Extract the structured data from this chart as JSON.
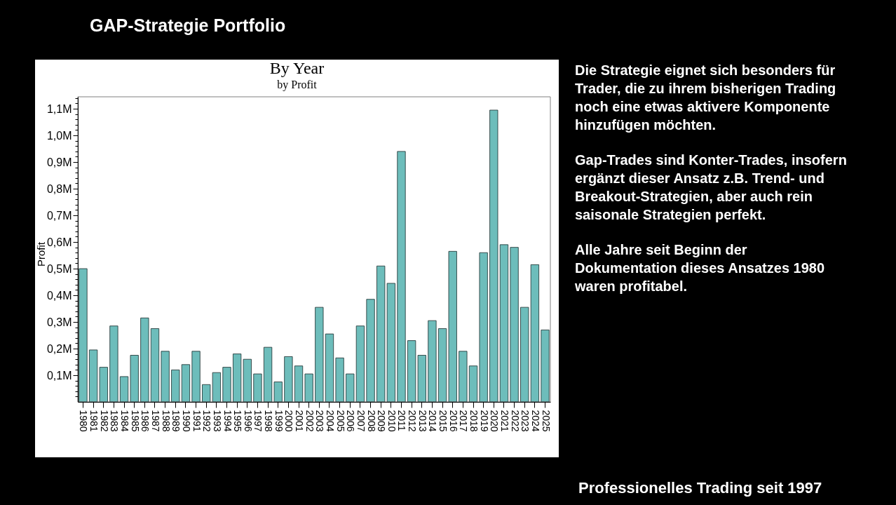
{
  "chart_data": {
    "type": "bar",
    "title": "By Year",
    "subtitle": "by Profit",
    "ylabel": "Profit",
    "categories": [
      "1980",
      "1981",
      "1982",
      "1983",
      "1984",
      "1985",
      "1986",
      "1987",
      "1988",
      "1989",
      "1990",
      "1991",
      "1992",
      "1993",
      "1994",
      "1995",
      "1996",
      "1997",
      "1998",
      "1999",
      "2000",
      "2001",
      "2002",
      "2003",
      "2004",
      "2005",
      "2006",
      "2007",
      "2008",
      "2009",
      "2010",
      "2011",
      "2012",
      "2013",
      "2014",
      "2015",
      "2016",
      "2017",
      "2018",
      "2019",
      "2020",
      "2021",
      "2022",
      "2023",
      "2024",
      "2025"
    ],
    "values": [
      500000,
      195000,
      130000,
      285000,
      95000,
      175000,
      315000,
      275000,
      190000,
      120000,
      140000,
      190000,
      65000,
      110000,
      130000,
      180000,
      160000,
      105000,
      205000,
      75000,
      170000,
      135000,
      105000,
      355000,
      255000,
      165000,
      105000,
      285000,
      385000,
      510000,
      445000,
      940000,
      230000,
      175000,
      305000,
      275000,
      565000,
      190000,
      135000,
      560000,
      1095000,
      590000,
      580000,
      355000,
      515000,
      270000
    ],
    "color": "#6dbdbb",
    "ylim": [
      0,
      1145000
    ],
    "yticks": [
      {
        "value": 20000,
        "label": null
      },
      {
        "value": 40000,
        "label": null
      },
      {
        "value": 60000,
        "label": null
      },
      {
        "value": 80000,
        "label": null
      },
      {
        "value": 100000,
        "label": "0,1M"
      },
      {
        "value": 120000,
        "label": null
      },
      {
        "value": 140000,
        "label": null
      },
      {
        "value": 160000,
        "label": null
      },
      {
        "value": 180000,
        "label": null
      },
      {
        "value": 200000,
        "label": "0,2M"
      },
      {
        "value": 220000,
        "label": null
      },
      {
        "value": 240000,
        "label": null
      },
      {
        "value": 260000,
        "label": null
      },
      {
        "value": 280000,
        "label": null
      },
      {
        "value": 300000,
        "label": "0,3M"
      },
      {
        "value": 320000,
        "label": null
      },
      {
        "value": 340000,
        "label": null
      },
      {
        "value": 360000,
        "label": null
      },
      {
        "value": 380000,
        "label": null
      },
      {
        "value": 400000,
        "label": "0,4M"
      },
      {
        "value": 420000,
        "label": null
      },
      {
        "value": 440000,
        "label": null
      },
      {
        "value": 460000,
        "label": null
      },
      {
        "value": 480000,
        "label": null
      },
      {
        "value": 500000,
        "label": "0,5M"
      },
      {
        "value": 520000,
        "label": null
      },
      {
        "value": 540000,
        "label": null
      },
      {
        "value": 560000,
        "label": null
      },
      {
        "value": 580000,
        "label": null
      },
      {
        "value": 600000,
        "label": "0,6M"
      },
      {
        "value": 620000,
        "label": null
      },
      {
        "value": 640000,
        "label": null
      },
      {
        "value": 660000,
        "label": null
      },
      {
        "value": 680000,
        "label": null
      },
      {
        "value": 700000,
        "label": "0,7M"
      },
      {
        "value": 720000,
        "label": null
      },
      {
        "value": 740000,
        "label": null
      },
      {
        "value": 760000,
        "label": null
      },
      {
        "value": 780000,
        "label": null
      },
      {
        "value": 800000,
        "label": "0,8M"
      },
      {
        "value": 820000,
        "label": null
      },
      {
        "value": 840000,
        "label": null
      },
      {
        "value": 860000,
        "label": null
      },
      {
        "value": 880000,
        "label": null
      },
      {
        "value": 900000,
        "label": "0,9M"
      },
      {
        "value": 920000,
        "label": null
      },
      {
        "value": 940000,
        "label": null
      },
      {
        "value": 960000,
        "label": null
      },
      {
        "value": 980000,
        "label": null
      },
      {
        "value": 1000000,
        "label": "1,0M"
      },
      {
        "value": 1020000,
        "label": null
      },
      {
        "value": 1040000,
        "label": null
      },
      {
        "value": 1060000,
        "label": null
      },
      {
        "value": 1080000,
        "label": null
      },
      {
        "value": 1100000,
        "label": "1,1M"
      },
      {
        "value": 1120000,
        "label": null
      },
      {
        "value": 1140000,
        "label": null
      }
    ],
    "annotations": [
      "GAP-Strategie Portfolio",
      "Die Strategie eignet sich besonders für\nTrader, die zu ihrem bisherigen Trading\nnoch eine etwas aktivere Komponente\nhinzufügen möchten.",
      "Gap-Trades sind Konter-Trades, insofern\nergänzt dieser Ansatz z.B. Trend- und\nBreakout-Strategien, aber auch rein\nsaisonale Strategien perfekt.",
      "Alle Jahre seit Beginn der\nDokumentation dieses Ansatzes 1980\nwaren profitabel.",
      "Professionelles Trading seit 1997"
    ]
  }
}
